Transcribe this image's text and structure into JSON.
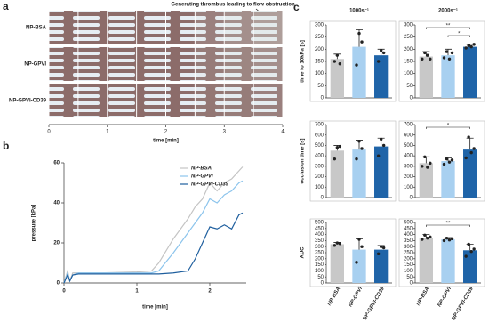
{
  "chart_data": [
    {
      "type": "timeline",
      "panel": "a",
      "rows": [
        "NP-BSA",
        "NP-GPVI",
        "NP-GPVI-CD39"
      ],
      "xlim": [
        0,
        4
      ],
      "xticks": [
        0,
        1,
        2,
        3,
        4
      ],
      "xlabel": "time [min]",
      "annotation": "Generating thrombus leading to flow obstruction"
    },
    {
      "type": "line",
      "panel": "b",
      "xlabel": "time [min]",
      "ylabel": "pressure [kPa]",
      "xlim": [
        0,
        2.5
      ],
      "xticks": [
        0,
        1,
        2
      ],
      "ylim": [
        0,
        60
      ],
      "yticks": [
        0,
        20,
        40,
        60
      ],
      "legend": "top-right",
      "x": [
        0,
        0.05,
        0.08,
        0.12,
        0.2,
        0.5,
        1.0,
        1.2,
        1.3,
        1.5,
        1.7,
        1.8,
        1.9,
        2.0,
        2.1,
        2.2,
        2.3,
        2.4,
        2.45
      ],
      "series": [
        {
          "name": "NP-BSA",
          "color": "#c4c4c4",
          "values": [
            0,
            6,
            1,
            5,
            5,
            5,
            5.5,
            6,
            10,
            22,
            32,
            38,
            42,
            50,
            46,
            50,
            52,
            56,
            58
          ]
        },
        {
          "name": "NP-GPVI",
          "color": "#8cc4ec",
          "values": [
            0,
            5,
            1,
            4,
            5,
            5,
            5,
            5,
            6,
            15,
            25,
            30,
            35,
            42,
            40,
            44,
            46,
            50,
            51
          ]
        },
        {
          "name": "NP-GPVI-CD39",
          "color": "#1f5f9e",
          "values": [
            0,
            4,
            1,
            4,
            4.5,
            4.5,
            4.5,
            4.5,
            4.5,
            5,
            6,
            12,
            20,
            28,
            27,
            29,
            27,
            34,
            35
          ]
        }
      ]
    },
    {
      "type": "bar",
      "panel": "c",
      "title": "1000s⁻¹",
      "ylabel": "time to 10kPa [s]",
      "ylim": [
        0,
        300
      ],
      "yticks": [
        0,
        50,
        100,
        150,
        200,
        250,
        300
      ],
      "colors": [
        "#c8c8c8",
        "#a8d0f0",
        "#1f64a8"
      ],
      "values": [
        160,
        210,
        175
      ],
      "errors": [
        20,
        70,
        25
      ],
      "points": [
        [
          150,
          175,
          140
        ],
        [
          135,
          265,
          230
        ],
        [
          150,
          195,
          185
        ]
      ],
      "significance": []
    },
    {
      "type": "bar",
      "title": "2000s⁻¹",
      "ylim": [
        0,
        300
      ],
      "yticks": [
        0,
        50,
        100,
        150,
        200,
        250,
        300
      ],
      "colors": [
        "#c8c8c8",
        "#a8d0f0",
        "#1f64a8"
      ],
      "values": [
        170,
        175,
        210
      ],
      "errors": [
        20,
        25,
        10
      ],
      "points": [
        [
          160,
          185,
          175,
          160
        ],
        [
          165,
          190,
          160,
          185
        ],
        [
          205,
          215,
          210,
          220
        ]
      ],
      "significance": [
        {
          "pair": [
            0,
            2
          ],
          "label": "**"
        },
        {
          "pair": [
            1,
            2
          ],
          "label": "*"
        }
      ]
    },
    {
      "type": "bar",
      "ylabel": "occlusion time [s]",
      "ylim": [
        0,
        700
      ],
      "yticks": [
        0,
        100,
        200,
        300,
        400,
        500,
        600,
        700
      ],
      "colors": [
        "#c8c8c8",
        "#a8d0f0",
        "#1f64a8"
      ],
      "values": [
        450,
        460,
        490
      ],
      "errors": [
        50,
        90,
        80
      ],
      "points": [
        [
          370,
          480,
          490
        ],
        [
          370,
          540,
          470
        ],
        [
          400,
          560,
          500
        ]
      ],
      "significance": []
    },
    {
      "type": "bar",
      "ylim": [
        0,
        700
      ],
      "yticks": [
        0,
        100,
        200,
        300,
        400,
        500,
        600,
        700
      ],
      "colors": [
        "#c8c8c8",
        "#a8d0f0",
        "#1f64a8"
      ],
      "values": [
        330,
        350,
        460
      ],
      "errors": [
        60,
        30,
        110
      ],
      "points": [
        [
          300,
          390,
          290,
          330
        ],
        [
          320,
          370,
          340,
          360
        ],
        [
          380,
          580,
          430,
          470
        ]
      ],
      "significance": [
        {
          "pair": [
            0,
            2
          ],
          "label": "*"
        }
      ]
    },
    {
      "type": "bar",
      "ylabel": "AUC",
      "categories": [
        "NP-BSA",
        "NP-GPVI",
        "NP-GPVI-CD39"
      ],
      "ylim": [
        0,
        500
      ],
      "yticks": [
        0,
        50,
        100,
        150,
        200,
        250,
        300,
        350,
        400,
        450,
        500
      ],
      "colors": [
        "#c8c8c8",
        "#a8d0f0",
        "#1f64a8"
      ],
      "values": [
        320,
        275,
        275
      ],
      "errors": [
        15,
        90,
        35
      ],
      "points": [
        [
          310,
          330,
          325
        ],
        [
          170,
          360,
          300
        ],
        [
          240,
          300,
          290
        ]
      ],
      "significance": []
    },
    {
      "type": "bar",
      "categories": [
        "NP-BSA",
        "NP-GPVI",
        "NP-GPVI-CD39"
      ],
      "ylim": [
        0,
        500
      ],
      "yticks": [
        0,
        50,
        100,
        150,
        200,
        250,
        300,
        350,
        400,
        450,
        500
      ],
      "colors": [
        "#c8c8c8",
        "#a8d0f0",
        "#1f64a8"
      ],
      "values": [
        375,
        360,
        270
      ],
      "errors": [
        25,
        15,
        50
      ],
      "points": [
        [
          360,
          395,
          370,
          380
        ],
        [
          350,
          370,
          355,
          365
        ],
        [
          220,
          320,
          260,
          280
        ]
      ],
      "significance": [
        {
          "pair": [
            0,
            2
          ],
          "label": "**"
        }
      ]
    }
  ]
}
